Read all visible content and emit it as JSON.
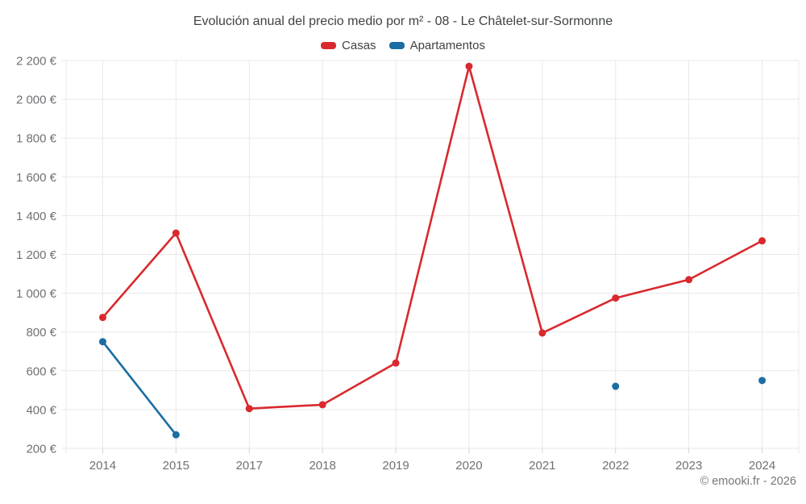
{
  "header": {
    "title": "Evolución anual del precio medio por m² - 08 - Le Châtelet-sur-Sormonne"
  },
  "legend": {
    "items": [
      {
        "id": "casas",
        "label": "Casas",
        "color": "#d9292e"
      },
      {
        "id": "apartamentos",
        "label": "Apartamentos",
        "color": "#1b6da3"
      }
    ]
  },
  "footer": {
    "credit": "© emooki.fr - 2026"
  },
  "colors": {
    "grid": "#e9e9e9",
    "tick": "#d2d2d2",
    "axis_text": "#6e7174",
    "casas": "#d9292e",
    "apartamentos": "#1b6da3"
  },
  "chart_data": {
    "type": "line",
    "title": "Evolución anual del precio medio por m² - 08 - Le Châtelet-sur-Sormonne",
    "categories": [
      "2014",
      "2015",
      "2017",
      "2018",
      "2019",
      "2020",
      "2021",
      "2022",
      "2023",
      "2024"
    ],
    "series": [
      {
        "name": "Casas",
        "color": "#d9292e",
        "values": [
          875,
          1310,
          405,
          425,
          640,
          2170,
          795,
          975,
          1070,
          1270
        ]
      },
      {
        "name": "Apartamentos",
        "color": "#1b6da3",
        "values": [
          750,
          270,
          null,
          null,
          null,
          null,
          null,
          520,
          null,
          550
        ]
      }
    ],
    "y_axis": {
      "min": 200,
      "max": 2200,
      "step": 200,
      "unit": "€",
      "tick_labels": [
        "200 €",
        "400 €",
        "600 €",
        "800 €",
        "1 000 €",
        "1 200 €",
        "1 400 €",
        "1 600 €",
        "1 800 €",
        "2 000 €",
        "2 200 €"
      ]
    },
    "grid": true,
    "legend_position": "top",
    "legend_entries": [
      "Casas",
      "Apartamentos"
    ]
  }
}
